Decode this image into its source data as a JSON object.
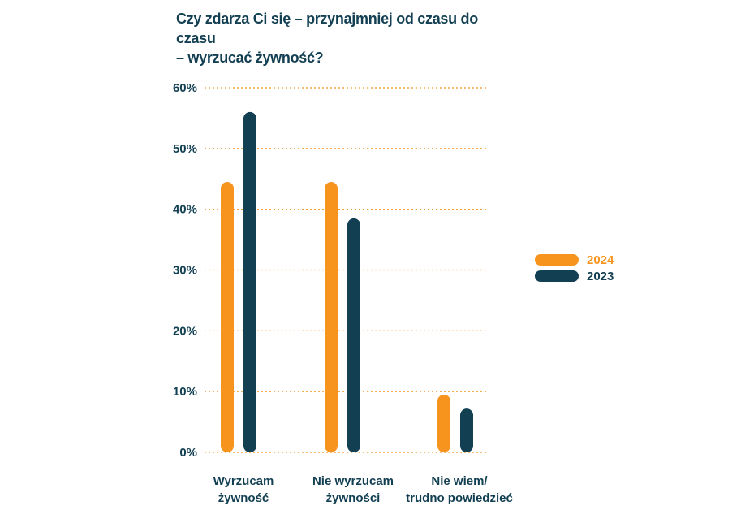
{
  "chart_data": {
    "type": "bar",
    "title_lines": [
      "Czy zdarza Ci się – przynajmniej od czasu do czasu",
      "– wyrzucać żywność?"
    ],
    "categories": [
      [
        "Wyrzucam",
        "żywność"
      ],
      [
        "Nie wyrzucam",
        "żywności"
      ],
      [
        "Nie wiem/",
        "trudno powiedzieć"
      ]
    ],
    "series": [
      {
        "name": "2024",
        "color": "#f7941d",
        "values": [
          44.5,
          44.5,
          9.5
        ]
      },
      {
        "name": "2023",
        "color": "#123f52",
        "values": [
          56,
          38.5,
          7.2
        ]
      }
    ],
    "ylim": [
      0,
      60
    ],
    "yticks": [
      "0%",
      "10%",
      "20%",
      "30%",
      "40%",
      "50%",
      "60%"
    ],
    "ytick_values": [
      0,
      10,
      20,
      30,
      40,
      50,
      60
    ],
    "grid": true,
    "grid_color": "#f7941d",
    "legend_position": "right",
    "text_color": "#123f52"
  }
}
